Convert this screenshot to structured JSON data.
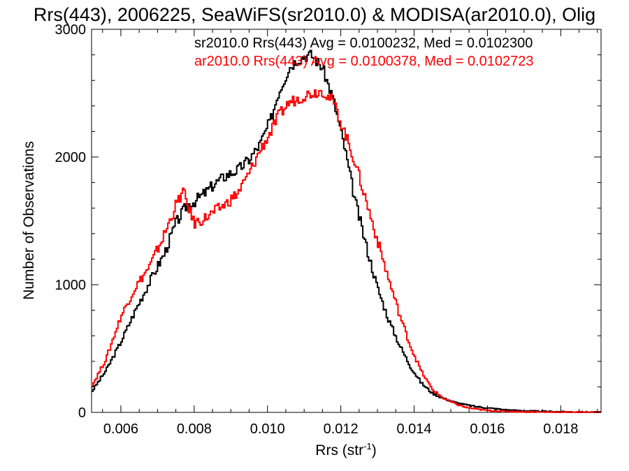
{
  "chart_data": {
    "type": "line",
    "title": "Rrs(443), 2006225, SeaWiFS(sr2010.0) & MODISA(ar2010.0), Olig",
    "xlabel": "Rrs (str",
    "xlabel_sup": "-1",
    "xlabel_close": ")",
    "ylabel": "Number of Observations",
    "xlim": [
      0.0052,
      0.0191
    ],
    "ylim": [
      0,
      3000
    ],
    "x_ticks": [
      0.006,
      0.008,
      0.01,
      0.012,
      0.014,
      0.016,
      0.018
    ],
    "x_tick_labels": [
      "0.006",
      "0.008",
      "0.010",
      "0.012",
      "0.014",
      "0.016",
      "0.018"
    ],
    "y_ticks": [
      0,
      1000,
      2000,
      3000
    ],
    "y_tick_labels": [
      "0",
      "1000",
      "2000",
      "3000"
    ],
    "grid": false,
    "legend_position": "top-right",
    "series": [
      {
        "name": "sr2010.0 Rrs(443) Avg = 0.0100232, Med = 0.0102300",
        "color": "#000000",
        "x": [
          0.0052,
          0.0056,
          0.006,
          0.0064,
          0.0068,
          0.0072,
          0.0075,
          0.0078,
          0.008,
          0.0083,
          0.0086,
          0.0089,
          0.0092,
          0.0095,
          0.0098,
          0.0101,
          0.0103,
          0.0106,
          0.0108,
          0.011,
          0.0112,
          0.0115,
          0.0118,
          0.0121,
          0.0124,
          0.0127,
          0.013,
          0.0133,
          0.0136,
          0.0139,
          0.0142,
          0.0145,
          0.0148,
          0.0151,
          0.0154,
          0.0157,
          0.016,
          0.0165,
          0.017,
          0.0175,
          0.018,
          0.0185,
          0.0191
        ],
        "y": [
          160,
          330,
          550,
          800,
          1030,
          1250,
          1480,
          1620,
          1650,
          1720,
          1800,
          1860,
          1900,
          1980,
          2100,
          2300,
          2500,
          2700,
          2760,
          2790,
          2800,
          2700,
          2450,
          2080,
          1650,
          1300,
          980,
          730,
          530,
          360,
          230,
          150,
          110,
          80,
          60,
          45,
          35,
          20,
          12,
          8,
          5,
          3,
          2
        ]
      },
      {
        "name": "ar2010.0 Rrs(443) Avg = 0.0100378, Med = 0.0102723",
        "color": "#ff0000",
        "x": [
          0.0052,
          0.0056,
          0.006,
          0.0064,
          0.0068,
          0.0072,
          0.0075,
          0.0077,
          0.008,
          0.0083,
          0.0086,
          0.0089,
          0.0092,
          0.0095,
          0.0098,
          0.0101,
          0.0103,
          0.0106,
          0.0108,
          0.011,
          0.0112,
          0.0115,
          0.0118,
          0.0121,
          0.0124,
          0.0127,
          0.013,
          0.0133,
          0.0136,
          0.0139,
          0.0142,
          0.0145,
          0.0148,
          0.0151,
          0.0154,
          0.0157,
          0.016,
          0.0165,
          0.017,
          0.0175,
          0.018,
          0.0185,
          0.0191
        ],
        "y": [
          200,
          420,
          750,
          980,
          1150,
          1400,
          1620,
          1730,
          1480,
          1520,
          1580,
          1640,
          1720,
          1870,
          2050,
          2200,
          2320,
          2430,
          2450,
          2480,
          2500,
          2520,
          2430,
          2200,
          1950,
          1650,
          1350,
          1050,
          770,
          520,
          320,
          180,
          110,
          70,
          40,
          25,
          15,
          8,
          5,
          3,
          2,
          1,
          1
        ]
      }
    ]
  }
}
